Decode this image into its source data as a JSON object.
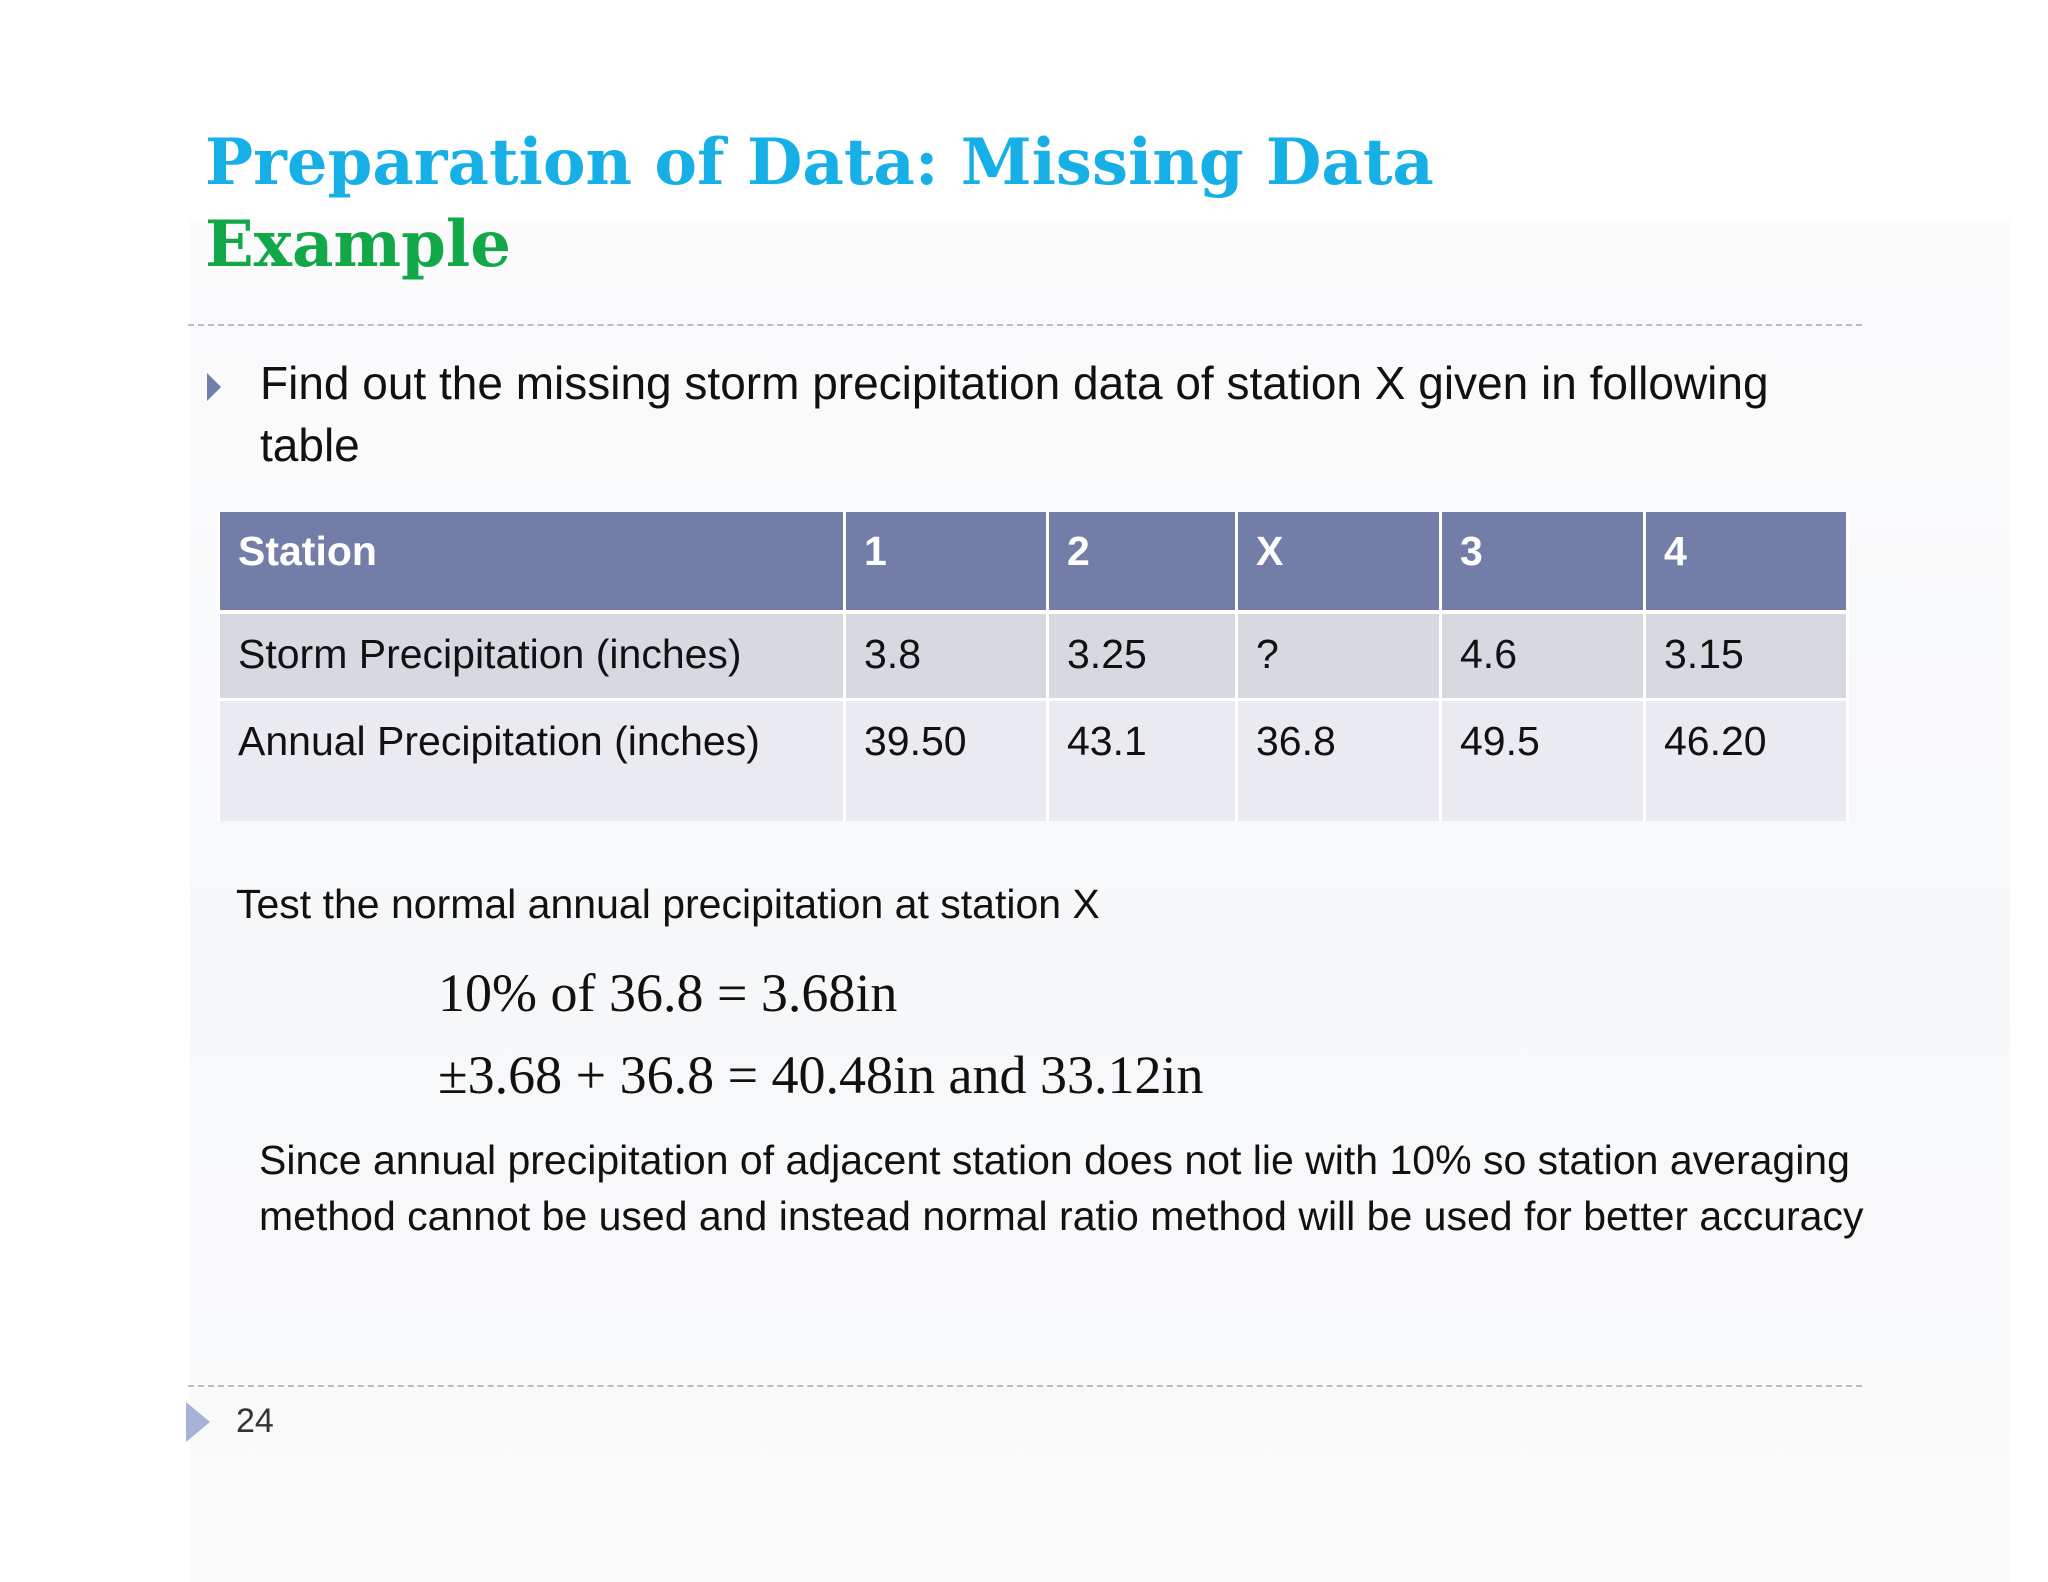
{
  "slide": {
    "title": "Preparation of Data: Missing Data",
    "subtitle": "Example",
    "bullet": "Find out the missing storm precipitation data of station X given in following table",
    "table": {
      "headers": [
        "Station",
        "1",
        "2",
        "X",
        "3",
        "4"
      ],
      "rows": [
        [
          "Storm Precipitation (inches)",
          "3.8",
          "3.25",
          "?",
          "4.6",
          "3.15"
        ],
        [
          "Annual Precipitation (inches)",
          "39.50",
          "43.1",
          "36.8",
          "49.5",
          "46.20"
        ]
      ]
    },
    "test_line": "Test the normal annual precipitation at station X",
    "equations": [
      "10% of  36.8 = 3.68in",
      "±3.68 + 36.8 = 40.48in and  33.12in"
    ],
    "conclusion": "Since annual precipitation of adjacent station does not lie with 10% so station averaging method cannot be used and instead normal ratio method will be used for better accuracy",
    "page_number": "24"
  },
  "colors": {
    "title": "#17b0e6",
    "subtitle": "#12a84a",
    "table_header": "#737ea8",
    "table_row_1": "#d6d9e0",
    "table_row_2": "#e9ebf0",
    "bullet_arrow": "#6f7fa8"
  },
  "icons": {
    "bullet": "triangle-right-icon",
    "footer": "triangle-right-icon"
  }
}
